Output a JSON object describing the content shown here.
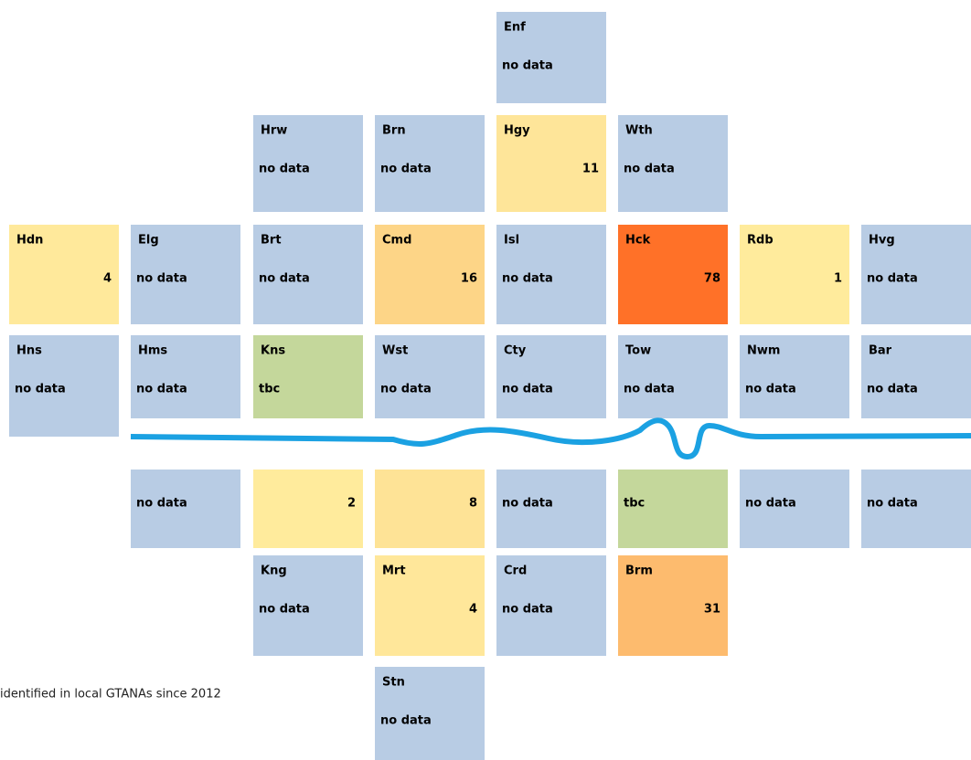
{
  "caption": "identified in local GTANAs since 2012",
  "tiles": [
    {
      "code": "Enf",
      "value": "no data",
      "color": "#b8cce4"
    },
    {
      "code": "Hrw",
      "value": "no data",
      "color": "#b8cce4"
    },
    {
      "code": "Brn",
      "value": "no data",
      "color": "#b8cce4"
    },
    {
      "code": "Hgy",
      "value": 11,
      "color": "#fee599"
    },
    {
      "code": "Wth",
      "value": "no data",
      "color": "#b8cce4"
    },
    {
      "code": "Hdn",
      "value": 4,
      "color": "#ffe99b"
    },
    {
      "code": "Elg",
      "value": "no data",
      "color": "#b8cce4"
    },
    {
      "code": "Brt",
      "value": "no data",
      "color": "#b8cce4"
    },
    {
      "code": "Cmd",
      "value": 16,
      "color": "#fdd587"
    },
    {
      "code": "Isl",
      "value": "no data",
      "color": "#b8cce4"
    },
    {
      "code": "Hck",
      "value": 78,
      "color": "#ff7128"
    },
    {
      "code": "Rdb",
      "value": 1,
      "color": "#ffeb9c"
    },
    {
      "code": "Hvg",
      "value": "no data",
      "color": "#b8cce4"
    },
    {
      "code": "Hns",
      "value": "no data",
      "color": "#b8cce4"
    },
    {
      "code": "Hms",
      "value": "no data",
      "color": "#b8cce4"
    },
    {
      "code": "Kns",
      "value": "tbc",
      "color": "#c4d79b"
    },
    {
      "code": "Wst",
      "value": "no data",
      "color": "#b8cce4"
    },
    {
      "code": "Cty",
      "value": "no data",
      "color": "#b8cce4"
    },
    {
      "code": "Tow",
      "value": "no data",
      "color": "#b8cce4"
    },
    {
      "code": "Nwm",
      "value": "no data",
      "color": "#b8cce4"
    },
    {
      "code": "Bar",
      "value": "no data",
      "color": "#b8cce4"
    },
    {
      "value": "no data",
      "color": "#b8cce4"
    },
    {
      "value": 2,
      "color": "#ffeb9c"
    },
    {
      "value": 8,
      "color": "#fee396"
    },
    {
      "value": "no data",
      "color": "#b8cce4"
    },
    {
      "value": "tbc",
      "color": "#c4d79b"
    },
    {
      "value": "no data",
      "color": "#b8cce4"
    },
    {
      "value": "no data",
      "color": "#b8cce4"
    },
    {
      "code": "Kng",
      "value": "no data",
      "color": "#b8cce4"
    },
    {
      "code": "Mrt",
      "value": 4,
      "color": "#ffe79a"
    },
    {
      "code": "Crd",
      "value": "no data",
      "color": "#b8cce4"
    },
    {
      "code": "Brm",
      "value": 31,
      "color": "#fdbb6e"
    },
    {
      "code": "Stn",
      "value": "no data",
      "color": "#b8cce4"
    }
  ]
}
